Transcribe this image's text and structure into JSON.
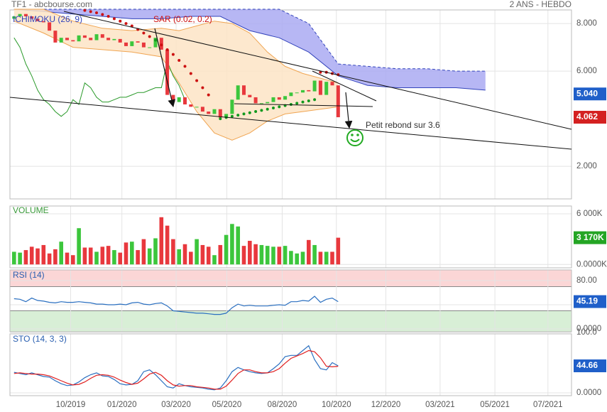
{
  "chart_data": [
    {
      "type": "candlestick",
      "title": "TF1 - abcbourse.com",
      "subtitle": "2 ANS - HEBDO",
      "open": [
        8.2,
        8.3,
        8.4,
        8.3,
        8.2,
        8.1,
        8.05,
        7.7,
        7.2,
        7.4,
        7.3,
        7.25,
        7.5,
        7.4,
        7.3,
        7.55,
        7.4,
        7.3,
        7.35,
        7.2,
        7.05,
        7.25,
        7.2,
        7.0,
        7.0,
        7.4,
        6.9,
        5.0,
        4.7,
        4.9,
        4.6,
        4.5,
        4.5,
        4.3,
        4.2,
        4.4,
        4.05,
        4.2,
        4.8,
        5.4,
        5.0,
        4.9,
        4.65,
        4.65,
        4.7,
        4.9,
        4.8,
        4.95,
        5.1,
        5.1,
        5.2,
        5.15,
        5.6,
        5.0,
        5.55,
        5.4
      ],
      "close": [
        8.3,
        8.4,
        8.3,
        8.2,
        8.1,
        8.05,
        7.7,
        7.2,
        7.4,
        7.3,
        7.25,
        7.5,
        7.4,
        7.3,
        7.55,
        7.4,
        7.3,
        7.35,
        7.2,
        7.05,
        7.25,
        7.2,
        7.0,
        7.0,
        7.4,
        6.9,
        5.0,
        4.7,
        4.9,
        4.6,
        4.5,
        4.5,
        4.3,
        4.2,
        4.4,
        4.05,
        4.2,
        4.8,
        5.4,
        5.0,
        4.9,
        4.65,
        4.65,
        4.7,
        4.9,
        4.8,
        4.95,
        5.1,
        5.1,
        5.2,
        5.15,
        5.6,
        5.0,
        5.55,
        5.4,
        4.062
      ],
      "up_color": "#3cc63c",
      "down_color": "#e8383d",
      "cloud": {
        "name": "ICHIMOKU (26, 9)",
        "color": "#aaaaf2",
        "line_color": "#3344bb",
        "x": [
          0,
          5,
          10,
          15,
          20,
          25,
          30,
          35,
          40,
          45,
          50,
          55,
          60,
          65,
          70,
          75,
          80
        ],
        "upper": [
          8.6,
          8.6,
          8.6,
          8.6,
          8.6,
          8.6,
          8.6,
          8.6,
          8.6,
          8.6,
          8.0,
          6.3,
          6.2,
          6.1,
          6.1,
          6.0,
          6.0
        ],
        "lower": [
          8.6,
          8.5,
          8.4,
          8.3,
          8.2,
          8.2,
          8.3,
          8.3,
          7.7,
          7.4,
          6.8,
          5.8,
          5.4,
          5.3,
          5.3,
          5.3,
          5.2
        ]
      },
      "bollinger": {
        "color": "#fde4c6",
        "line_color": "#f0a552",
        "x": [
          0,
          5,
          10,
          15,
          20,
          25,
          28,
          31,
          34,
          37,
          40,
          43,
          46,
          49,
          52,
          55
        ],
        "upper": [
          8.6,
          8.6,
          8.1,
          7.8,
          7.7,
          7.8,
          7.7,
          7.9,
          8.1,
          8.0,
          7.6,
          6.8,
          6.2,
          5.9,
          5.7,
          5.5
        ],
        "lower": [
          8.1,
          7.6,
          7.0,
          6.9,
          6.8,
          6.6,
          5.5,
          4.3,
          3.4,
          3.1,
          3.4,
          3.9,
          4.2,
          4.3,
          4.4,
          4.5
        ]
      },
      "sar": {
        "name": "SAR (0.02, 0.2)",
        "above_color": "#cc1111",
        "below_color": "#11991e",
        "values": [
          null,
          null,
          null,
          null,
          null,
          null,
          null,
          null,
          null,
          null,
          null,
          null,
          8.55,
          8.5,
          8.45,
          8.38,
          8.3,
          8.2,
          8.1,
          8.0,
          7.9,
          7.75,
          7.6,
          7.45,
          7.3,
          7.1,
          6.9,
          6.7,
          6.45,
          6.2,
          5.9,
          5.6,
          5.3,
          5.0,
          null,
          4.0,
          4.05,
          4.1,
          4.15,
          4.2,
          4.25,
          4.3,
          4.35,
          4.4,
          4.45,
          4.5,
          4.55,
          4.6,
          4.65,
          4.7,
          4.75,
          4.8,
          5.95,
          5.95,
          5.9,
          5.85
        ]
      },
      "lagging": {
        "color": "#2a9a2a",
        "values": [
          7.4,
          7.0,
          6.3,
          5.8,
          5.2,
          4.8,
          4.6,
          4.3,
          4.1,
          4.3,
          4.8,
          4.6,
          5.5,
          5.3,
          4.9,
          4.7,
          4.7,
          4.8,
          4.9,
          4.9,
          5.0,
          5.1,
          5.1,
          5.2,
          5.3,
          5.3,
          6.4,
          5.8,
          5.4,
          4.8
        ]
      },
      "kijun_last": {
        "value": 5.04,
        "label": "5.040",
        "color": "#1f5fc9"
      },
      "last_color": "#d42020",
      "annotation": "Petit rebond sur 3.6",
      "xlim": [
        -0.7,
        94.6
      ],
      "ylim": [
        0.63,
        8.57
      ],
      "yticks": [
        {
          "value": 8,
          "label": "8.000"
        },
        {
          "value": 6,
          "label": "6.000"
        },
        {
          "value": 2,
          "label": "2.000"
        }
      ]
    },
    {
      "type": "bar",
      "title": "VOLUME",
      "values": [
        1500,
        1400,
        1700,
        2100,
        1900,
        2300,
        1300,
        1800,
        2700,
        1400,
        1100,
        4300,
        2000,
        2000,
        1500,
        2100,
        2200,
        1700,
        1400,
        2600,
        2700,
        1700,
        3000,
        1900,
        3100,
        5600,
        4600,
        3000,
        1800,
        2400,
        1500,
        3000,
        2300,
        2100,
        1100,
        2300,
        3500,
        4800,
        4500,
        2200,
        2800,
        2400,
        2300,
        2200,
        2100,
        2100,
        2200,
        1600,
        1300,
        1500,
        2900,
        2300,
        1500,
        1500,
        1500,
        3170
      ],
      "last": {
        "value": 3170,
        "label": "3 170K",
        "color": "#24a524"
      },
      "xlim": [
        -0.7,
        94.6
      ],
      "ylim": [
        -400,
        6930
      ],
      "yticks": [
        {
          "value": 6000,
          "label": "6 000K"
        },
        {
          "value": 0,
          "label": "0.0000K"
        }
      ]
    },
    {
      "type": "line",
      "title": "RSI (14)",
      "color": "#2a6fc0",
      "values": [
        50,
        49,
        45,
        51,
        47,
        46,
        44,
        43,
        45,
        44,
        44,
        45,
        44,
        43,
        41,
        41,
        40,
        40,
        41,
        40,
        43,
        44,
        41,
        40,
        42,
        43,
        38,
        30,
        29,
        28,
        27,
        26,
        26,
        25,
        24,
        24,
        26,
        35,
        41,
        38,
        39,
        38,
        38,
        38,
        39,
        40,
        39,
        45,
        45,
        47,
        46,
        54,
        44,
        49,
        51,
        45.19
      ],
      "overbought": 70,
      "oversold": 30,
      "xlim": [
        -0.7,
        94.6
      ],
      "ylim": [
        -4.7,
        97.6
      ],
      "yticks": [
        {
          "value": 80,
          "label": "80.00"
        },
        {
          "value": 40,
          "label": "40.00"
        },
        {
          "value": 0,
          "label": "0.0000"
        }
      ]
    },
    {
      "type": "line",
      "title": "STO (14, 3, 3)",
      "series": [
        {
          "color": "#2a6fc0",
          "values": [
            34,
            32,
            30,
            33,
            30,
            27,
            26,
            20,
            15,
            12,
            13,
            18,
            25,
            30,
            33,
            28,
            27,
            22,
            15,
            13,
            14,
            20,
            35,
            38,
            30,
            20,
            10,
            8,
            15,
            12,
            10,
            9,
            8,
            6,
            5,
            8,
            20,
            35,
            42,
            38,
            35,
            33,
            32,
            33,
            40,
            48,
            60,
            62,
            62,
            70,
            78,
            55,
            40,
            38,
            50,
            44.66
          ]
        },
        {
          "color": "#e02020",
          "values": [
            32,
            33,
            32,
            31,
            31,
            30,
            28,
            24,
            20,
            16,
            13,
            14,
            18,
            24,
            29,
            30,
            29,
            26,
            21,
            17,
            14,
            16,
            23,
            31,
            34,
            29,
            20,
            13,
            11,
            12,
            12,
            10,
            9,
            8,
            6,
            6,
            11,
            21,
            32,
            38,
            38,
            35,
            33,
            33,
            35,
            40,
            49,
            57,
            61,
            65,
            70,
            68,
            58,
            44,
            43,
            44
          ]
        }
      ],
      "xlim": [
        -0.7,
        94.6
      ],
      "ylim": [
        -4.7,
        97.6
      ],
      "yticks": [
        {
          "value": 100,
          "label": "100.0"
        },
        {
          "value": 0,
          "label": "0.0000"
        }
      ],
      "xticks": [
        {
          "value": 9.6,
          "label": "10/2019"
        },
        {
          "value": 18.3,
          "label": "01/2020"
        },
        {
          "value": 27.5,
          "label": "03/2020"
        },
        {
          "value": 36.1,
          "label": "05/2020"
        },
        {
          "value": 45.5,
          "label": "08/2020"
        },
        {
          "value": 54.7,
          "label": "10/2020"
        },
        {
          "value": 63.1,
          "label": "12/2020"
        },
        {
          "value": 72.3,
          "label": "03/2021"
        },
        {
          "value": 81.6,
          "label": "05/2021"
        },
        {
          "value": 90.6,
          "label": "07/2021"
        }
      ]
    }
  ]
}
